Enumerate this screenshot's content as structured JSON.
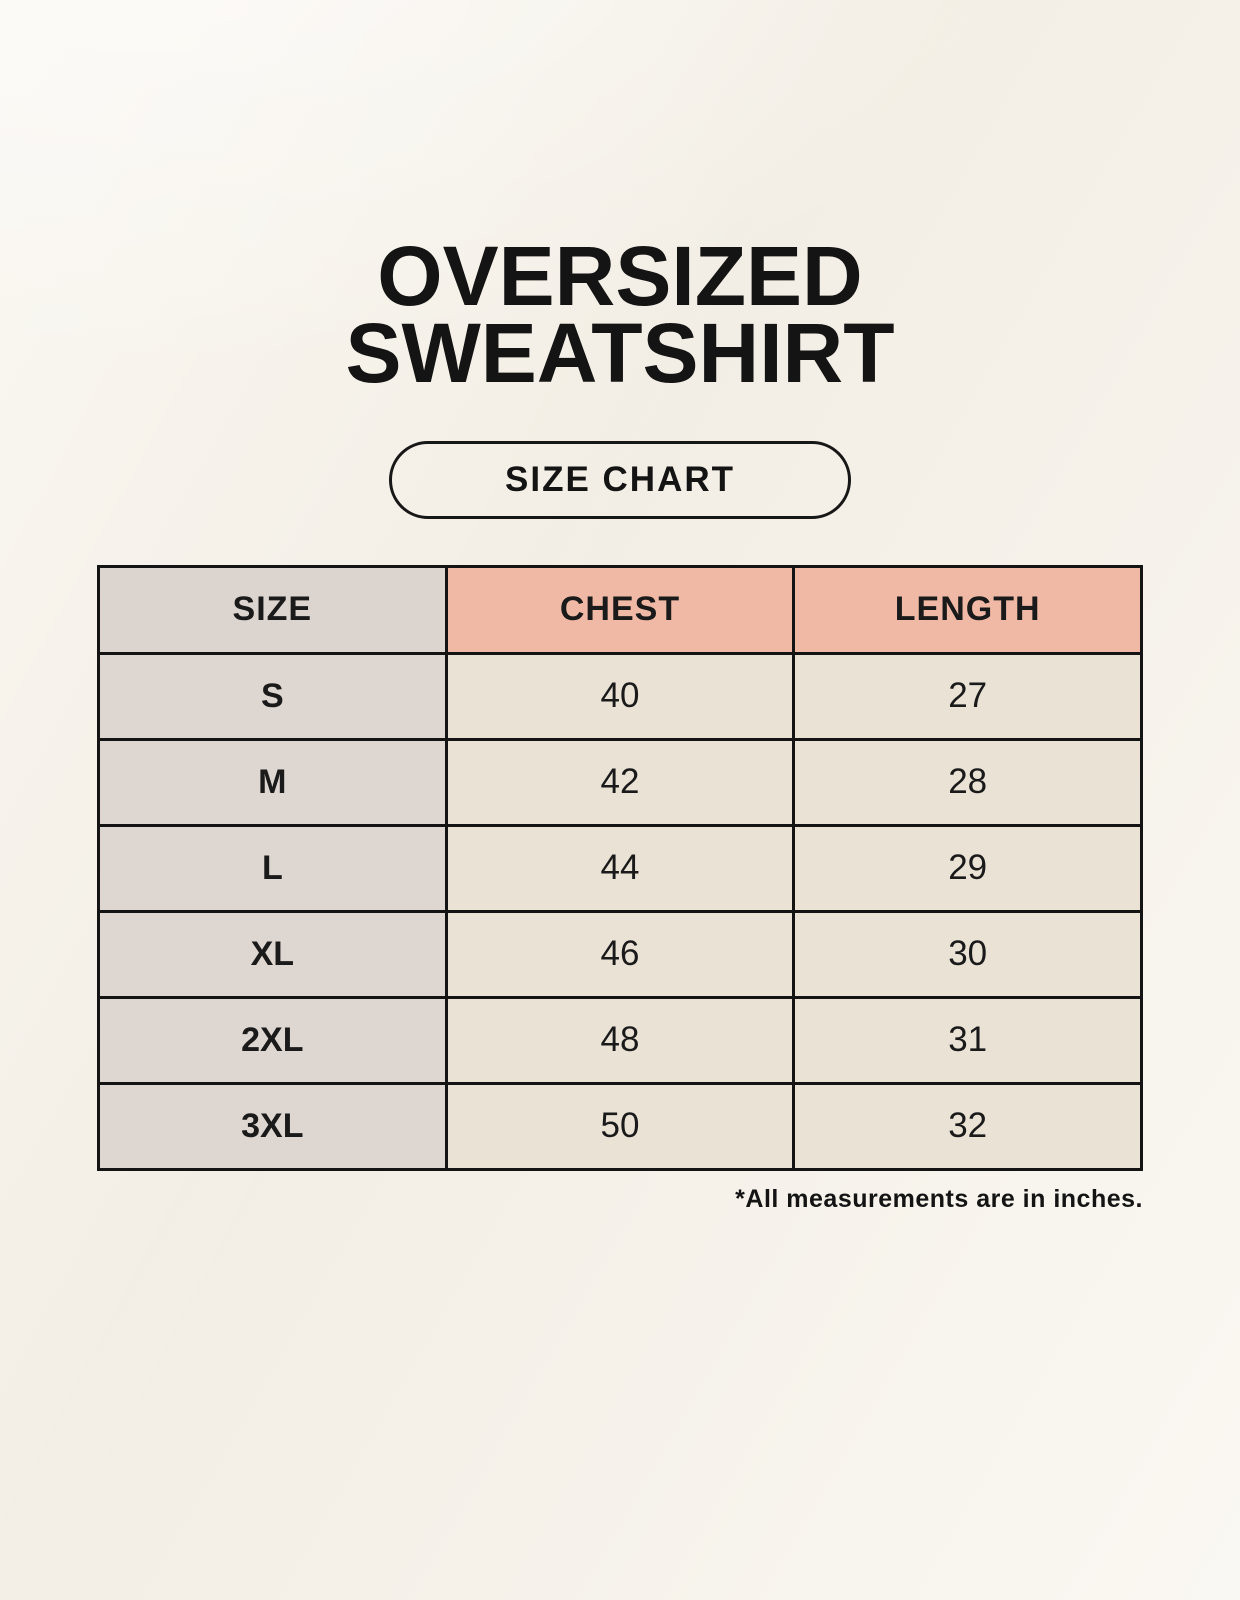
{
  "header": {
    "title_line1": "OVERSIZED",
    "title_line2": "SWEATSHIRT",
    "badge_label": "SIZE CHART"
  },
  "page": {
    "footnote": "*All measurements are in inches."
  },
  "chart_data": {
    "type": "table",
    "title": "OVERSIZED SWEATSHIRT — SIZE CHART",
    "columns": [
      "SIZE",
      "CHEST",
      "LENGTH"
    ],
    "rows": [
      [
        "S",
        "40",
        "27"
      ],
      [
        "M",
        "42",
        "28"
      ],
      [
        "L",
        "44",
        "29"
      ],
      [
        "XL",
        "46",
        "30"
      ],
      [
        "2XL",
        "48",
        "31"
      ],
      [
        "3XL",
        "50",
        "32"
      ]
    ],
    "units": "inches",
    "layout": "3-column bordered grid, equal column widths, header row highlighted"
  },
  "colors": {
    "background": "#f8f4ec",
    "header_size_bg": "#dcd4cf",
    "header_measure_bg": "#f0b9a6",
    "row_label_bg": "#ded6d1",
    "cell_bg": "#e9e2d5",
    "border": "#141414",
    "text": "#1a1a1a"
  }
}
